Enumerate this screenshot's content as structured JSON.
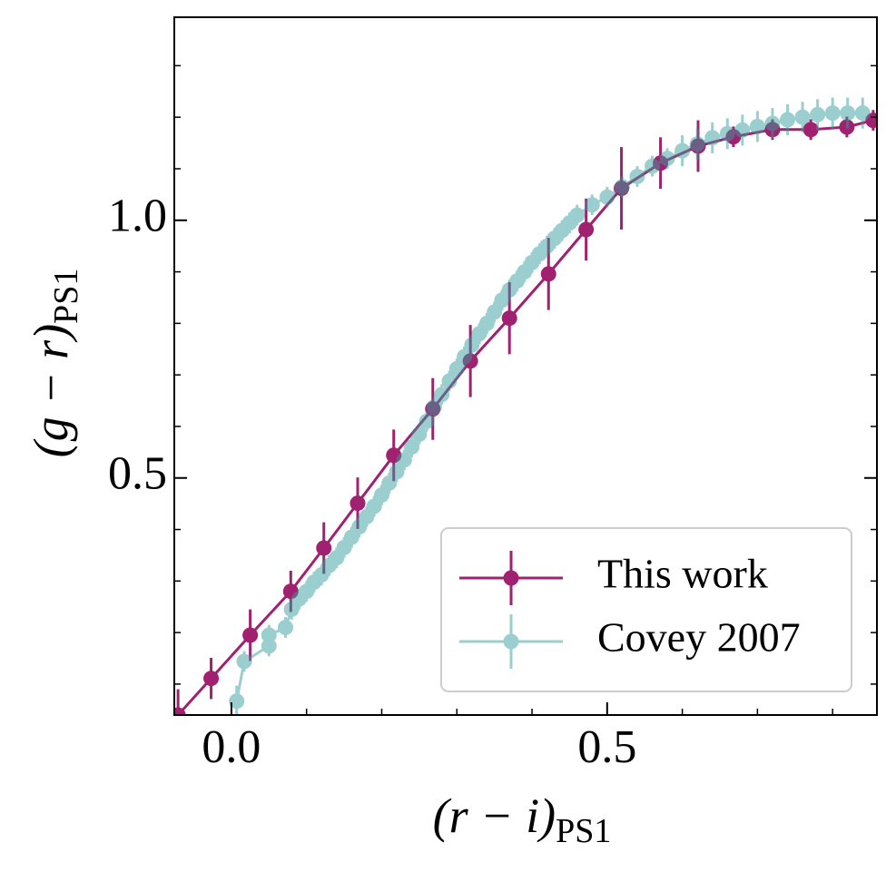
{
  "chart_data": {
    "type": "errorbar-line",
    "xlabel": {
      "main": "(r − i)",
      "sub": "PS1"
    },
    "ylabel": {
      "main": "(g − r)",
      "sub": "PS1"
    },
    "xlim": [
      -0.076,
      0.859
    ],
    "ylim": [
      0.04,
      1.394
    ],
    "xticks": [
      {
        "value": 0,
        "label": "0.0"
      },
      0.5
    ],
    "yticks": [
      0.5,
      {
        "value": 1,
        "label": "1.0"
      }
    ],
    "xticks_minor": [
      0.1,
      0.2,
      0.3,
      0.4,
      0.6,
      0.7,
      0.8
    ],
    "yticks_minor": [
      0.1,
      0.2,
      0.3,
      0.4,
      0.6,
      0.7,
      0.8,
      0.9,
      1.1,
      1.2,
      1.3
    ],
    "legend": "lower right",
    "series": [
      {
        "name": "This work",
        "color": "#a0216f",
        "opacity": 1,
        "x": [
          -0.071,
          -0.027,
          0.025,
          0.079,
          0.123,
          0.168,
          0.216,
          0.268,
          0.318,
          0.37,
          0.422,
          0.472,
          0.519,
          0.571,
          0.621,
          0.668,
          0.72,
          0.771,
          0.819,
          0.854
        ],
        "values": [
          0.04,
          0.111,
          0.195,
          0.28,
          0.364,
          0.451,
          0.544,
          0.634,
          0.727,
          0.81,
          0.896,
          0.982,
          1.062,
          1.111,
          1.144,
          1.162,
          1.176,
          1.176,
          1.181,
          1.194
        ],
        "errors": [
          0.05,
          0.04,
          0.05,
          0.04,
          0.05,
          0.05,
          0.05,
          0.06,
          0.07,
          0.07,
          0.07,
          0.06,
          0.08,
          0.05,
          0.05,
          0.02,
          0.02,
          0.02,
          0.02,
          0.02
        ]
      },
      {
        "name": "Covey 2007",
        "color": "#3a9e9e",
        "opacity": 0.5,
        "x": [
          0.007,
          0.017,
          0.05,
          0.05,
          0.072,
          0.08,
          0.09,
          0.1,
          0.11,
          0.12,
          0.13,
          0.14,
          0.15,
          0.16,
          0.17,
          0.18,
          0.19,
          0.2,
          0.21,
          0.22,
          0.23,
          0.24,
          0.25,
          0.26,
          0.27,
          0.28,
          0.29,
          0.3,
          0.31,
          0.32,
          0.33,
          0.34,
          0.35,
          0.36,
          0.37,
          0.38,
          0.39,
          0.4,
          0.41,
          0.42,
          0.43,
          0.44,
          0.45,
          0.46,
          0.48,
          0.5,
          0.52,
          0.54,
          0.56,
          0.58,
          0.6,
          0.62,
          0.64,
          0.66,
          0.68,
          0.7,
          0.72,
          0.74,
          0.76,
          0.78,
          0.8,
          0.82,
          0.84
        ],
        "values": [
          0.067,
          0.144,
          0.174,
          0.195,
          0.21,
          0.245,
          0.265,
          0.28,
          0.298,
          0.312,
          0.33,
          0.345,
          0.365,
          0.385,
          0.405,
          0.425,
          0.445,
          0.467,
          0.49,
          0.512,
          0.535,
          0.56,
          0.585,
          0.61,
          0.638,
          0.662,
          0.688,
          0.712,
          0.735,
          0.758,
          0.78,
          0.8,
          0.822,
          0.845,
          0.865,
          0.882,
          0.9,
          0.918,
          0.935,
          0.95,
          0.965,
          0.98,
          0.995,
          1.01,
          1.03,
          1.045,
          1.065,
          1.085,
          1.105,
          1.12,
          1.135,
          1.148,
          1.16,
          1.168,
          1.175,
          1.182,
          1.188,
          1.195,
          1.2,
          1.205,
          1.208,
          1.208,
          1.208
        ],
        "errors": [
          0.03,
          0.02,
          0.02,
          0.02,
          0.02,
          0.02,
          0.02,
          0.02,
          0.02,
          0.02,
          0.02,
          0.02,
          0.02,
          0.02,
          0.02,
          0.02,
          0.02,
          0.02,
          0.02,
          0.02,
          0.02,
          0.02,
          0.02,
          0.02,
          0.02,
          0.02,
          0.02,
          0.02,
          0.02,
          0.02,
          0.02,
          0.02,
          0.02,
          0.02,
          0.02,
          0.02,
          0.02,
          0.02,
          0.02,
          0.02,
          0.02,
          0.02,
          0.02,
          0.02,
          0.02,
          0.02,
          0.02,
          0.02,
          0.02,
          0.02,
          0.03,
          0.03,
          0.03,
          0.03,
          0.03,
          0.03,
          0.03,
          0.03,
          0.03,
          0.03,
          0.03,
          0.03,
          0.03
        ]
      }
    ]
  }
}
